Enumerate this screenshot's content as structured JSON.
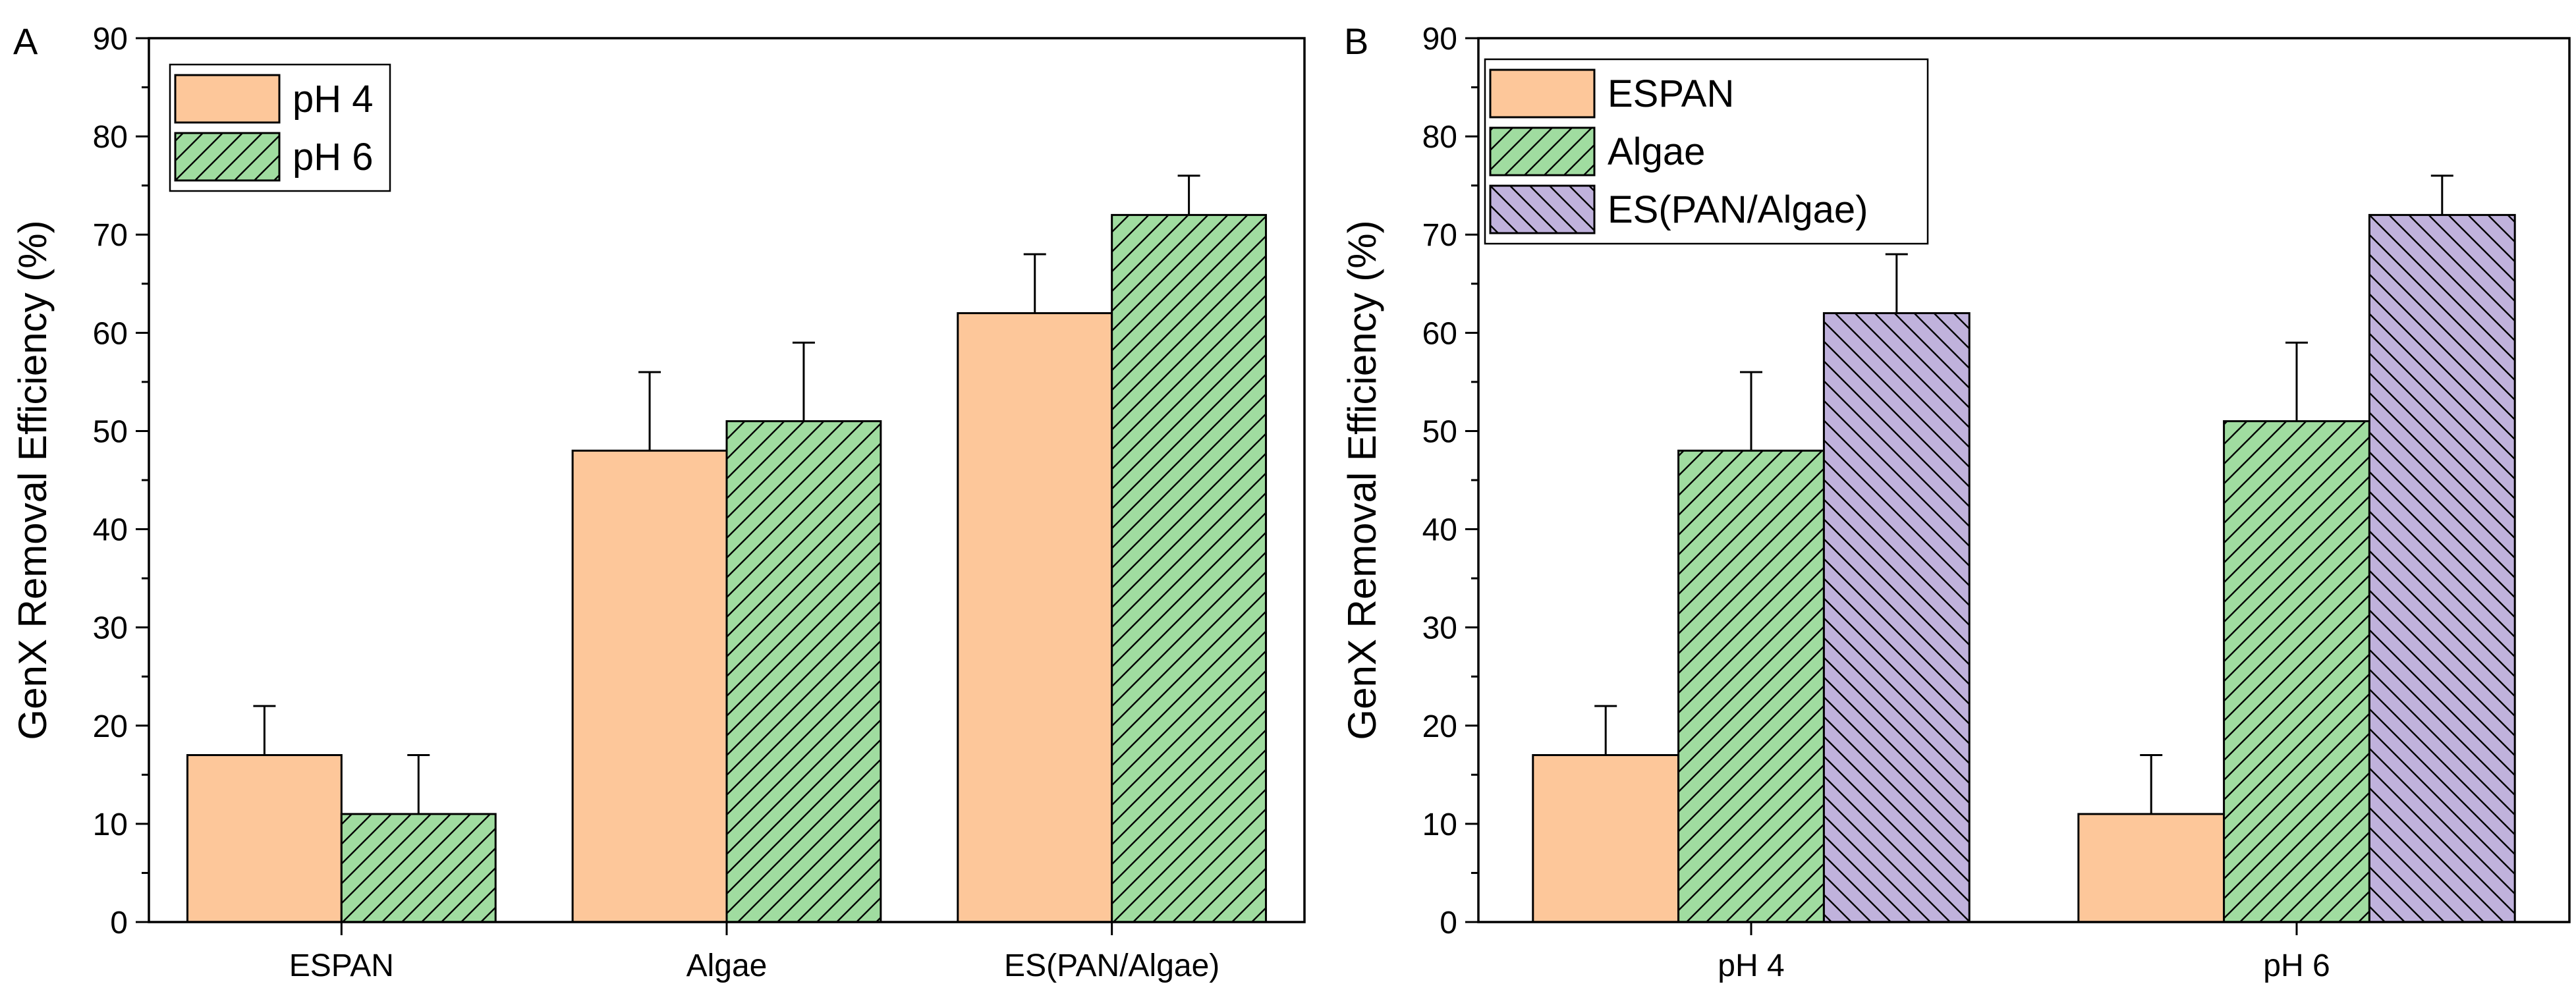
{
  "chart_data": [
    {
      "panel_label": "A",
      "type": "bar",
      "categories": [
        "ESPAN",
        "Algae",
        "ES(PAN/Algae)"
      ],
      "series": [
        {
          "name": "pH 4",
          "values": [
            17,
            48,
            62
          ],
          "errors": [
            5,
            8,
            6
          ],
          "color": "#fdc79a",
          "pattern": "none"
        },
        {
          "name": "pH 6",
          "values": [
            11,
            51,
            72
          ],
          "errors": [
            6,
            8,
            4
          ],
          "color": "#a0dca0",
          "pattern": "forward-hatch"
        }
      ],
      "ylabel": "GenX Removal Efficiency (%)",
      "xlabel": "",
      "ylim": [
        0,
        90
      ],
      "yticks": [
        "0",
        "10",
        "20",
        "30",
        "40",
        "50",
        "60",
        "70",
        "80",
        "90"
      ],
      "legend_position": "top-left"
    },
    {
      "panel_label": "B",
      "type": "bar",
      "categories": [
        "pH 4",
        "pH 6"
      ],
      "series": [
        {
          "name": "ESPAN",
          "values": [
            17,
            11
          ],
          "errors": [
            5,
            6
          ],
          "color": "#fdc79a",
          "pattern": "none"
        },
        {
          "name": "Algae",
          "values": [
            48,
            51
          ],
          "errors": [
            8,
            8
          ],
          "color": "#a0dca0",
          "pattern": "forward-hatch"
        },
        {
          "name": "ES(PAN/Algae)",
          "values": [
            62,
            72
          ],
          "errors": [
            6,
            4
          ],
          "color": "#c0b2dc",
          "pattern": "back-hatch"
        }
      ],
      "ylabel": "GenX Removal Efficiency (%)",
      "xlabel": "",
      "ylim": [
        0,
        90
      ],
      "yticks": [
        "0",
        "10",
        "20",
        "30",
        "40",
        "50",
        "60",
        "70",
        "80",
        "90"
      ],
      "legend_position": "top-left"
    }
  ]
}
